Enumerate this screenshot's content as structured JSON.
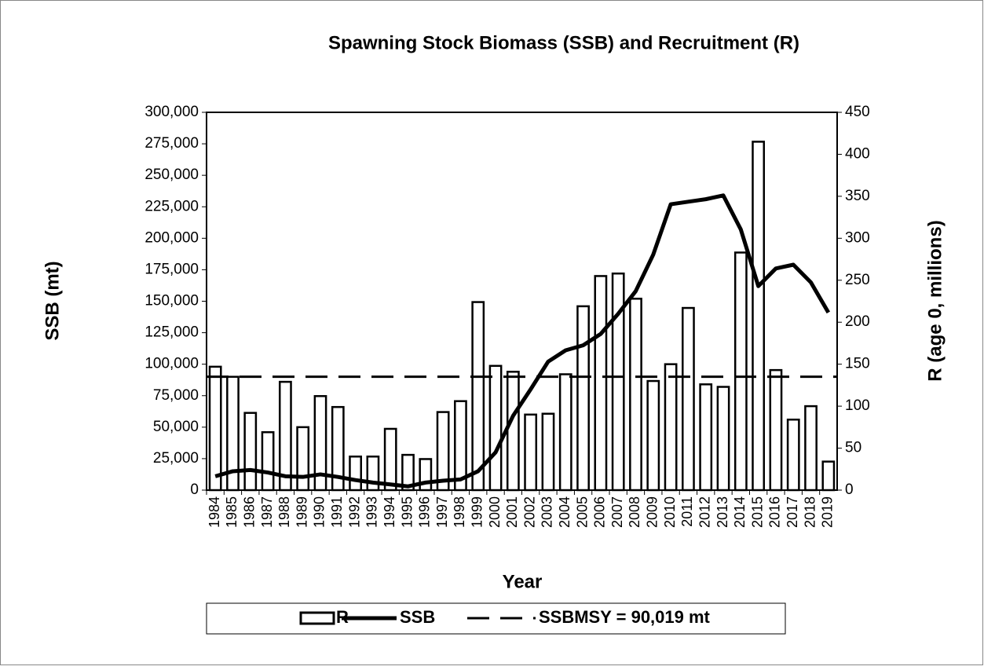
{
  "chart_data": {
    "type": "bar",
    "title": "Spawning Stock Biomass (SSB) and Recruitment (R)",
    "x_label": "Year",
    "y_label": "SSB (mt)",
    "y2_label": "R (age 0, millions)",
    "categories": [
      "1984",
      "1985",
      "1986",
      "1987",
      "1988",
      "1989",
      "1990",
      "1991",
      "1992",
      "1993",
      "1994",
      "1995",
      "1996",
      "1997",
      "1998",
      "1999",
      "2000",
      "2001",
      "2002",
      "2003",
      "2004",
      "2005",
      "2006",
      "2007",
      "2008",
      "2009",
      "2010",
      "2011",
      "2012",
      "2013",
      "2014",
      "2015",
      "2016",
      "2017",
      "2018",
      "2019"
    ],
    "series": [
      {
        "name": "R",
        "type": "bar",
        "axis": "y2",
        "color": "#ffffff",
        "values": [
          147,
          135,
          92,
          69,
          129,
          75,
          112,
          99,
          40,
          40,
          73,
          42,
          37,
          93,
          106,
          224,
          148,
          141,
          90,
          91,
          138,
          219,
          255,
          258,
          228,
          130,
          150,
          217,
          126,
          123,
          283,
          415,
          143,
          84,
          100,
          34
        ]
      },
      {
        "name": "SSB",
        "type": "line",
        "color": "#000000",
        "values": [
          11000,
          15000,
          16000,
          14000,
          11000,
          10500,
          12500,
          10500,
          8000,
          6000,
          4500,
          3000,
          6000,
          7500,
          8500,
          15000,
          30000,
          59000,
          80000,
          102000,
          111000,
          115000,
          124000,
          140000,
          158000,
          187000,
          227000,
          229000,
          231000,
          234000,
          207000,
          162000,
          176000,
          179000,
          165000,
          141000
        ]
      }
    ],
    "reference_line": {
      "name": "SSBMSY = 90,019 mt",
      "value": 90019,
      "color": "#000000"
    },
    "ylim": [
      0,
      300000
    ],
    "yticks": [
      0,
      {
        "value": 25000,
        "label": "25,000"
      },
      {
        "value": 50000,
        "label": "50,000"
      },
      {
        "value": 75000,
        "label": "75,000"
      },
      {
        "value": 100000,
        "label": "100,000"
      },
      {
        "value": 125000,
        "label": "125,000"
      },
      {
        "value": 150000,
        "label": "150,000"
      },
      {
        "value": 175000,
        "label": "175,000"
      },
      {
        "value": 200000,
        "label": "200,000"
      },
      {
        "value": 225000,
        "label": "225,000"
      },
      {
        "value": 250000,
        "label": "250,000"
      },
      {
        "value": 275000,
        "label": "275,000"
      },
      {
        "value": 300000,
        "label": "300,000"
      }
    ],
    "y2lim": [
      0,
      450
    ],
    "y2ticks": [
      0,
      50,
      100,
      150,
      200,
      250,
      300,
      350,
      400,
      450
    ],
    "grid": false,
    "legend": "bottom"
  }
}
